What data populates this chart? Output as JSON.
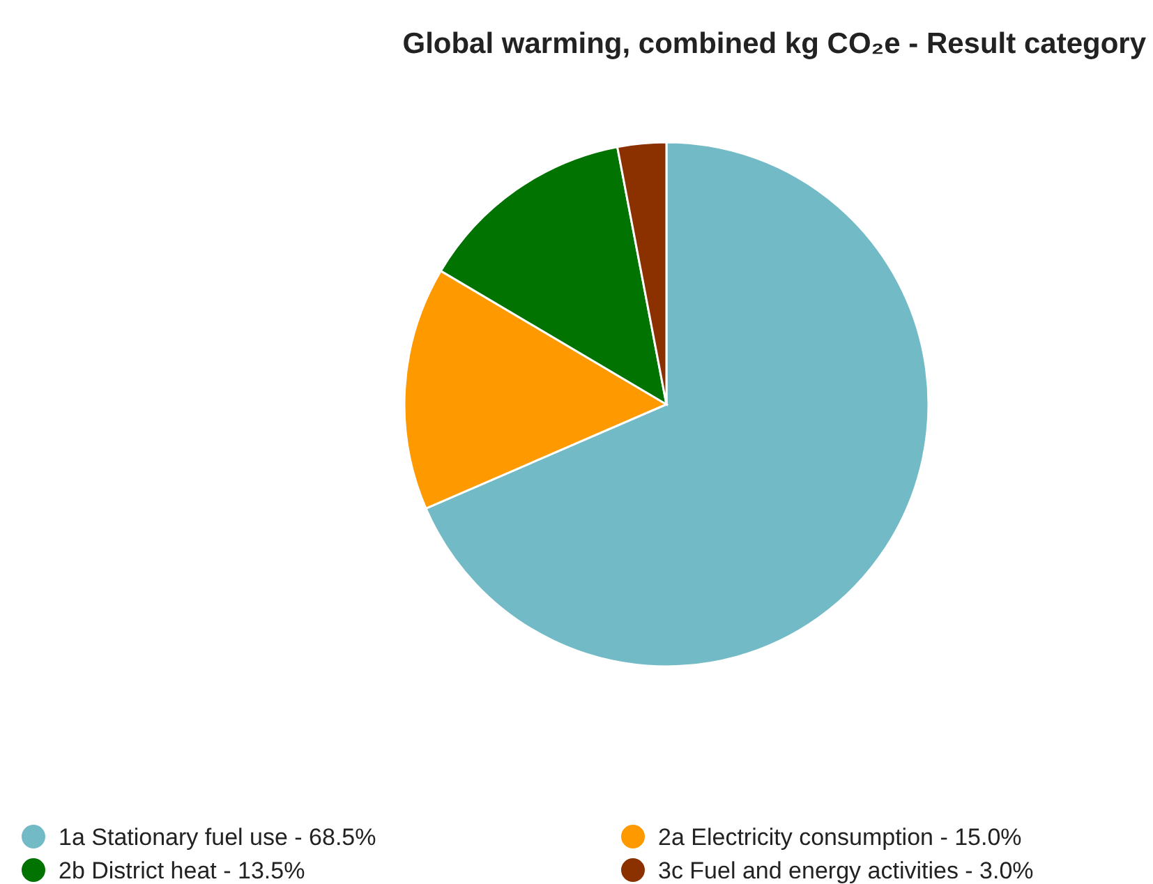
{
  "chart_data": {
    "type": "pie",
    "title": "Global warming, combined kg CO₂e - Result category",
    "categories": [
      "1a Stationary fuel use - 68.5%",
      "2a Electricity consumption - 15.0%",
      "2b District heat - 13.5%",
      "3c Fuel and energy activities - 3.0%"
    ],
    "values": [
      68.5,
      15.0,
      13.5,
      3.0
    ],
    "colors": [
      "#72bac6",
      "#ff9900",
      "#007300",
      "#8b3100"
    ],
    "legend": "bottom"
  }
}
